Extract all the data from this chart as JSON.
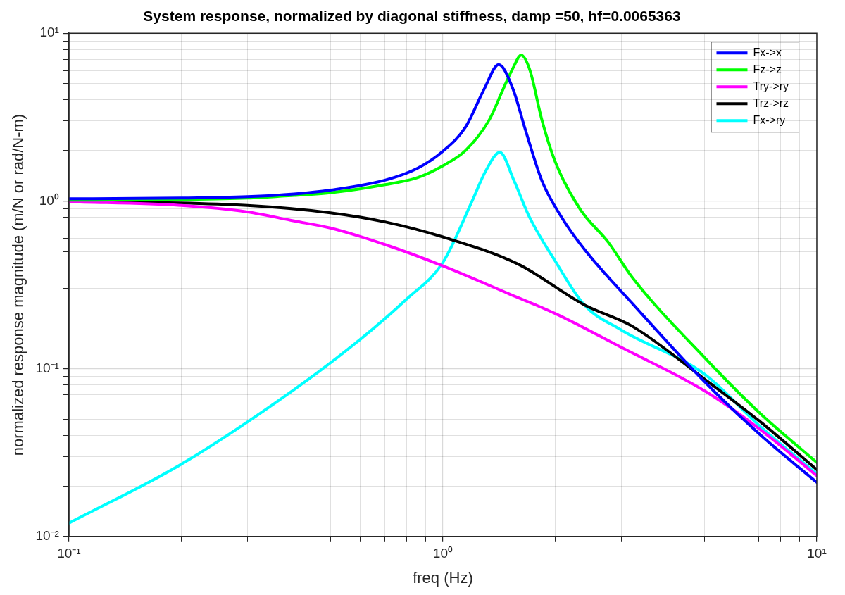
{
  "chart_data": {
    "type": "line",
    "title": "System response, normalized by diagonal stiffness, damp =50, hf=0.0065363",
    "xlabel": "freq (Hz)",
    "ylabel": "normalized response magnitude (m/N or rad/N-m)",
    "log": "xy",
    "grid": true,
    "legend": "top right",
    "marker": "none",
    "line_style": "solid",
    "xlim": [
      0.1,
      10
    ],
    "ylim": [
      0.01,
      10
    ],
    "xticks": [
      {
        "value": 0.1,
        "label": "10⁻¹"
      },
      {
        "value": 0.2,
        "label": null
      },
      {
        "value": 0.3,
        "label": null
      },
      {
        "value": 0.4,
        "label": null
      },
      {
        "value": 0.5,
        "label": null
      },
      {
        "value": 0.6,
        "label": null
      },
      {
        "value": 0.7,
        "label": null
      },
      {
        "value": 0.8,
        "label": null
      },
      {
        "value": 0.9,
        "label": null
      },
      {
        "value": 1,
        "label": "10⁰"
      },
      {
        "value": 2,
        "label": null
      },
      {
        "value": 3,
        "label": null
      },
      {
        "value": 4,
        "label": null
      },
      {
        "value": 5,
        "label": null
      },
      {
        "value": 6,
        "label": null
      },
      {
        "value": 7,
        "label": null
      },
      {
        "value": 8,
        "label": null
      },
      {
        "value": 9,
        "label": null
      },
      {
        "value": 10,
        "label": "10¹"
      }
    ],
    "yticks": [
      {
        "value": 0.01,
        "label": "10⁻²"
      },
      {
        "value": 0.02,
        "label": null
      },
      {
        "value": 0.03,
        "label": null
      },
      {
        "value": 0.04,
        "label": null
      },
      {
        "value": 0.05,
        "label": null
      },
      {
        "value": 0.06,
        "label": null
      },
      {
        "value": 0.07,
        "label": null
      },
      {
        "value": 0.08,
        "label": null
      },
      {
        "value": 0.09,
        "label": null
      },
      {
        "value": 0.1,
        "label": "10⁻¹"
      },
      {
        "value": 0.2,
        "label": null
      },
      {
        "value": 0.3,
        "label": null
      },
      {
        "value": 0.4,
        "label": null
      },
      {
        "value": 0.5,
        "label": null
      },
      {
        "value": 0.6,
        "label": null
      },
      {
        "value": 0.7,
        "label": null
      },
      {
        "value": 0.8,
        "label": null
      },
      {
        "value": 0.9,
        "label": null
      },
      {
        "value": 1,
        "label": "10⁰"
      },
      {
        "value": 2,
        "label": null
      },
      {
        "value": 3,
        "label": null
      },
      {
        "value": 4,
        "label": null
      },
      {
        "value": 5,
        "label": null
      },
      {
        "value": 6,
        "label": null
      },
      {
        "value": 7,
        "label": null
      },
      {
        "value": 8,
        "label": null
      },
      {
        "value": 9,
        "label": null
      },
      {
        "value": 10,
        "label": "10¹"
      }
    ],
    "series": [
      {
        "name": "Fx->x",
        "color": "#0000ff",
        "x": [
          0.1,
          0.2,
          0.3,
          0.4,
          0.5,
          0.7,
          0.857,
          1.0,
          1.15,
          1.29,
          1.41,
          1.54,
          1.66,
          1.84,
          2.07,
          2.39,
          3.21,
          5,
          7,
          10
        ],
        "values": [
          1.03,
          1.04,
          1.06,
          1.1,
          1.16,
          1.33,
          1.57,
          1.98,
          2.76,
          4.65,
          6.5,
          4.65,
          2.68,
          1.32,
          0.81,
          0.515,
          0.245,
          0.084,
          0.041,
          0.021
        ]
      },
      {
        "name": "Fz->z",
        "color": "#00ff00",
        "x": [
          0.1,
          0.2,
          0.3,
          0.4,
          0.5,
          0.7,
          0.857,
          1.0,
          1.15,
          1.33,
          1.45,
          1.54,
          1.62,
          1.71,
          1.84,
          2.0,
          2.33,
          2.77,
          3.21,
          5,
          7,
          10
        ],
        "values": [
          1.01,
          1.02,
          1.04,
          1.08,
          1.12,
          1.25,
          1.38,
          1.62,
          2.0,
          3.04,
          4.65,
          6.2,
          7.4,
          6.0,
          3.04,
          1.7,
          0.89,
          0.567,
          0.35,
          0.117,
          0.055,
          0.0276
        ]
      },
      {
        "name": "Try->ry",
        "color": "#ff00ff",
        "x": [
          0.1,
          0.2,
          0.3,
          0.4,
          0.5,
          0.7,
          1.0,
          1.5,
          2,
          3,
          5,
          7,
          10
        ],
        "values": [
          0.99,
          0.94,
          0.86,
          0.76,
          0.69,
          0.55,
          0.41,
          0.28,
          0.213,
          0.134,
          0.074,
          0.044,
          0.023
        ]
      },
      {
        "name": "Trz->rz",
        "color": "#000000",
        "x": [
          0.1,
          0.3,
          0.5,
          0.7,
          1.0,
          1.59,
          2.39,
          3.21,
          5,
          7,
          10
        ],
        "values": [
          1.0,
          0.94,
          0.85,
          0.75,
          0.61,
          0.42,
          0.24,
          0.179,
          0.087,
          0.049,
          0.025
        ]
      },
      {
        "name": "Fx->ry",
        "color": "#00ffff",
        "x": [
          0.1,
          0.2,
          0.4,
          0.6,
          0.8,
          1.0,
          1.2,
          1.3,
          1.42,
          1.55,
          1.7,
          2,
          2.39,
          3,
          5,
          7,
          10
        ],
        "values": [
          0.012,
          0.027,
          0.075,
          0.149,
          0.26,
          0.43,
          1.01,
          1.5,
          1.95,
          1.32,
          0.81,
          0.436,
          0.24,
          0.17,
          0.093,
          0.046,
          0.0236
        ]
      }
    ]
  }
}
